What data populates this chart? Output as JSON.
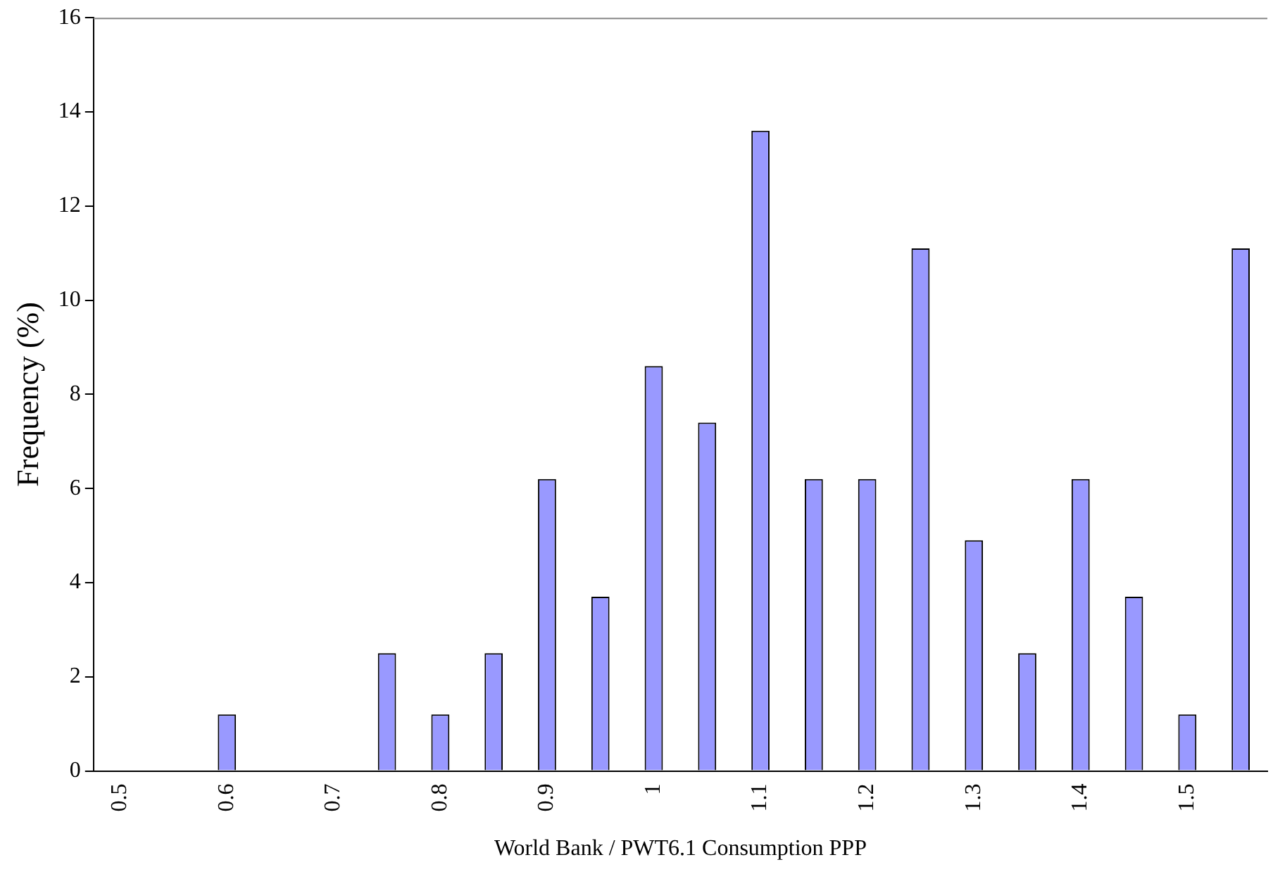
{
  "chart_data": {
    "type": "bar",
    "xlabel": "World Bank / PWT6.1 Consumption PPP",
    "ylabel": "Frequency (%)",
    "categories": [
      "0.5",
      null,
      "0.6",
      null,
      "0.7",
      null,
      "0.8",
      null,
      "0.9",
      null,
      "1",
      null,
      "1.1",
      null,
      "1.2",
      null,
      "1.3",
      null,
      "1.4",
      null,
      "1.5",
      null
    ],
    "values": [
      0,
      0,
      1.2,
      0,
      0,
      2.5,
      1.2,
      2.5,
      6.2,
      3.7,
      8.6,
      7.4,
      13.6,
      6.2,
      6.2,
      11.1,
      4.9,
      2.5,
      6.2,
      3.7,
      1.2,
      11.1
    ],
    "color": "#9999ff",
    "ylim": [
      0,
      16
    ],
    "yticks": [
      0,
      2,
      4,
      6,
      8,
      10,
      12,
      14,
      16
    ],
    "grid": false,
    "legend": false
  }
}
